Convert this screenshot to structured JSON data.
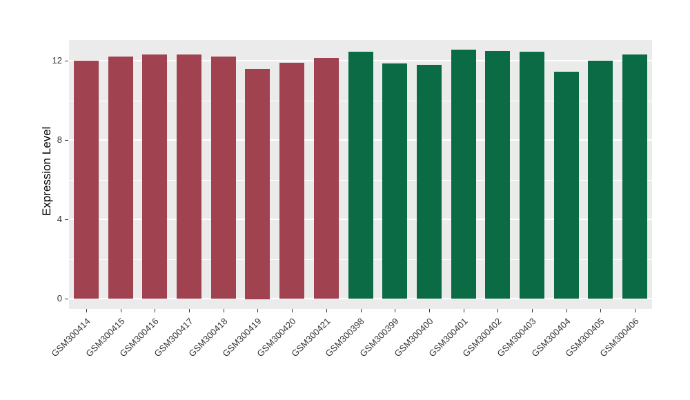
{
  "chart": {
    "ylabel": "Expression Level",
    "panel_bg": "#EBEBEB",
    "grid_color": "#FFFFFF",
    "axis_text_color": "#333333",
    "tick_color": "#333333"
  },
  "chart_data": {
    "type": "bar",
    "title": "",
    "xlabel": "",
    "ylabel": "Expression Level",
    "categories": [
      "GSM300414",
      "GSM300415",
      "GSM300416",
      "GSM300417",
      "GSM300418",
      "GSM300419",
      "GSM300420",
      "GSM300421",
      "GSM300398",
      "GSM300399",
      "GSM300400",
      "GSM300401",
      "GSM300402",
      "GSM300403",
      "GSM300404",
      "GSM300405",
      "GSM300406"
    ],
    "values": [
      12.0,
      12.2,
      12.3,
      12.3,
      12.2,
      11.6,
      11.9,
      12.15,
      12.45,
      11.85,
      11.8,
      12.55,
      12.5,
      12.45,
      11.45,
      12.0,
      12.3
    ],
    "group_of_bar": [
      0,
      0,
      0,
      0,
      0,
      0,
      0,
      0,
      1,
      1,
      1,
      1,
      1,
      1,
      1,
      1,
      1
    ],
    "palette": [
      "#A0424F",
      "#0B6B45"
    ],
    "ylim": [
      0,
      13
    ],
    "yticks": [
      0,
      4,
      8,
      12
    ],
    "ytick_labels": [
      "0",
      "4",
      "8",
      "12"
    ],
    "minor_ticks": [
      2,
      6,
      10
    ],
    "grid": true,
    "legend_position": "none"
  }
}
